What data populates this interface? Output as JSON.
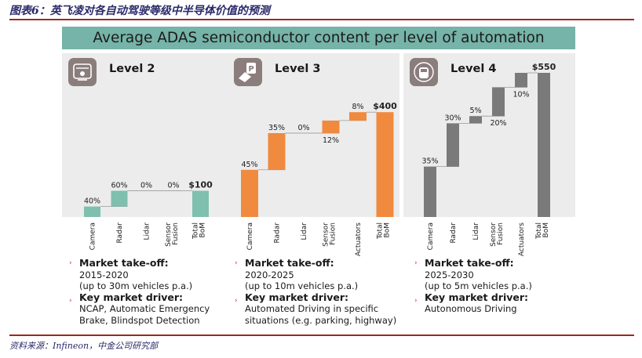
{
  "figure_caption": "图表6：英飞凌对各自动驾驶等级中半导体价值的预测",
  "source": "资料来源：Infineon，中金公司研究部",
  "chart_data": [
    {
      "type": "bar",
      "subtype": "waterfall",
      "title": "Level 2",
      "categories": [
        "Camera",
        "Radar",
        "Lidar",
        "Sensor Fusion",
        "Total BoM"
      ],
      "values": [
        40,
        60,
        0,
        0,
        100
      ],
      "value_labels": [
        "40%",
        "60%",
        "0%",
        "0%",
        "$100"
      ],
      "color": "#7fbfae",
      "total_usd": 100
    },
    {
      "type": "bar",
      "subtype": "waterfall",
      "title": "Level 3",
      "categories": [
        "Camera",
        "Radar",
        "Lidar",
        "Sensor Fusion",
        "Actuators",
        "Total BoM"
      ],
      "values": [
        180,
        140,
        0,
        48,
        32,
        400
      ],
      "value_labels": [
        "45%",
        "35%",
        "0%",
        "12%",
        "8%",
        "$400"
      ],
      "color": "#f08a3e",
      "total_usd": 400
    },
    {
      "type": "bar",
      "subtype": "waterfall",
      "title": "Level 4",
      "categories": [
        "Camera",
        "Radar",
        "Lidar",
        "Sensor Fusion",
        "Actuators",
        "Total BoM"
      ],
      "values": [
        192.5,
        165,
        27.5,
        110,
        55,
        550
      ],
      "value_labels": [
        "35%",
        "30%",
        "5%",
        "20%",
        "10%",
        "$550"
      ],
      "color": "#7a7a7a",
      "total_usd": 550
    }
  ],
  "banner_title": "Average ADAS semiconductor content per level of automation",
  "panels": [
    {
      "level": "Level 2",
      "icon": "car-assist-icon",
      "takeoff_label": "Market take-off:",
      "takeoff_years": "2015-2020",
      "takeoff_volume": "(up to 30m vehicles p.a.)",
      "driver_label": "Key market driver:",
      "driver_line1": "NCAP, Automatic Emergency",
      "driver_line2": "Brake, Blindspot Detection"
    },
    {
      "level": "Level 3",
      "icon": "parking-car-icon",
      "takeoff_label": "Market take-off:",
      "takeoff_years": "2020-2025",
      "takeoff_volume": "(up to 10m vehicles p.a.)",
      "driver_label": "Key market driver:",
      "driver_line1": "Automated Driving in specific",
      "driver_line2": "situations (e.g. parking, highway)"
    },
    {
      "level": "Level 4",
      "icon": "autonomous-car-icon",
      "takeoff_label": "Market take-off:",
      "takeoff_years": "2025-2030",
      "takeoff_volume": "(up to 5m vehicles p.a.)",
      "driver_label": "Key market driver:",
      "driver_line1": "Autonomous Driving",
      "driver_line2": ""
    }
  ]
}
